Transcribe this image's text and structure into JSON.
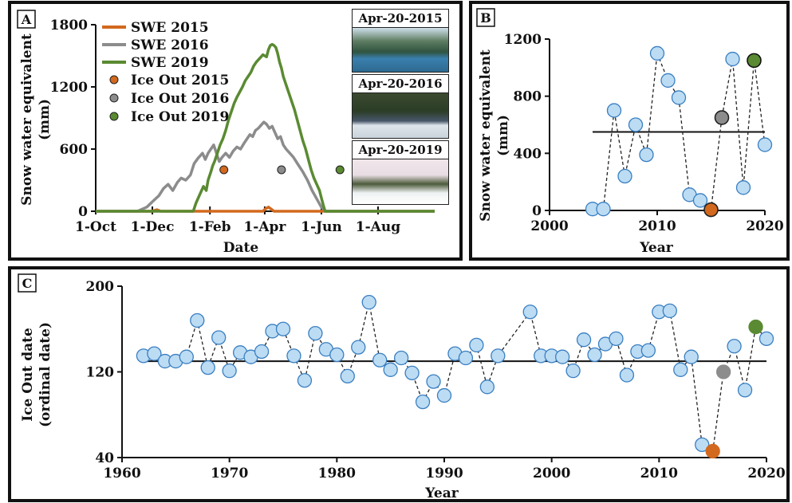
{
  "panels": {
    "a": {
      "letter": "A",
      "chart_data": {
        "type": "line",
        "xlabel": "Date",
        "ylabel": "Snow water equivalent (mm)",
        "ylabel_lines": [
          "Snow water equivalent",
          "(mm)"
        ],
        "x_tick_labels": [
          "1-Oct",
          "1-Dec",
          "1-Feb",
          "1-Apr",
          "1-Jun",
          "1-Aug"
        ],
        "x_tick_days": [
          0,
          61,
          123,
          182,
          243,
          304
        ],
        "x_range_days": [
          0,
          365
        ],
        "ylim": [
          0,
          1800
        ],
        "y_ticks": [
          0,
          600,
          1200,
          1800
        ],
        "series": [
          {
            "name": "SWE 2015",
            "color": "#d2691e",
            "points": [
              [
                0,
                0
              ],
              [
                60,
                0
              ],
              [
                62,
                5
              ],
              [
                66,
                15
              ],
              [
                70,
                0
              ],
              [
                150,
                0
              ],
              [
                180,
                0
              ],
              [
                183,
                25
              ],
              [
                186,
                40
              ],
              [
                189,
                20
              ],
              [
                192,
                0
              ],
              [
                365,
                0
              ]
            ]
          },
          {
            "name": "SWE 2016",
            "color": "#8c8c8c",
            "points": [
              [
                0,
                0
              ],
              [
                45,
                0
              ],
              [
                55,
                40
              ],
              [
                62,
                100
              ],
              [
                68,
                150
              ],
              [
                73,
                220
              ],
              [
                78,
                260
              ],
              [
                83,
                200
              ],
              [
                88,
                280
              ],
              [
                92,
                320
              ],
              [
                97,
                300
              ],
              [
                102,
                350
              ],
              [
                106,
                460
              ],
              [
                110,
                510
              ],
              [
                115,
                560
              ],
              [
                118,
                500
              ],
              [
                121,
                560
              ],
              [
                124,
                600
              ],
              [
                127,
                640
              ],
              [
                130,
                560
              ],
              [
                133,
                480
              ],
              [
                136,
                520
              ],
              [
                140,
                560
              ],
              [
                144,
                520
              ],
              [
                148,
                580
              ],
              [
                152,
                620
              ],
              [
                156,
                600
              ],
              [
                160,
                660
              ],
              [
                163,
                700
              ],
              [
                166,
                740
              ],
              [
                169,
                720
              ],
              [
                172,
                780
              ],
              [
                175,
                800
              ],
              [
                178,
                830
              ],
              [
                181,
                860
              ],
              [
                184,
                840
              ],
              [
                187,
                800
              ],
              [
                190,
                820
              ],
              [
                193,
                760
              ],
              [
                196,
                700
              ],
              [
                199,
                720
              ],
              [
                202,
                640
              ],
              [
                205,
                600
              ],
              [
                209,
                560
              ],
              [
                213,
                520
              ],
              [
                218,
                450
              ],
              [
                223,
                380
              ],
              [
                228,
                300
              ],
              [
                233,
                200
              ],
              [
                238,
                120
              ],
              [
                243,
                40
              ],
              [
                248,
                0
              ],
              [
                365,
                0
              ]
            ]
          },
          {
            "name": "SWE 2019",
            "color": "#5a8a32",
            "points": [
              [
                0,
                0
              ],
              [
                105,
                0
              ],
              [
                108,
                80
              ],
              [
                112,
                160
              ],
              [
                116,
                240
              ],
              [
                119,
                200
              ],
              [
                121,
                300
              ],
              [
                124,
                380
              ],
              [
                126,
                440
              ],
              [
                128,
                480
              ],
              [
                131,
                560
              ],
              [
                134,
                640
              ],
              [
                137,
                700
              ],
              [
                140,
                780
              ],
              [
                143,
                880
              ],
              [
                146,
                960
              ],
              [
                149,
                1040
              ],
              [
                152,
                1100
              ],
              [
                155,
                1150
              ],
              [
                158,
                1200
              ],
              [
                161,
                1260
              ],
              [
                164,
                1300
              ],
              [
                167,
                1340
              ],
              [
                170,
                1400
              ],
              [
                173,
                1440
              ],
              [
                176,
                1470
              ],
              [
                178,
                1490
              ],
              [
                180,
                1510
              ],
              [
                182,
                1500
              ],
              [
                184,
                1490
              ],
              [
                186,
                1560
              ],
              [
                188,
                1600
              ],
              [
                190,
                1610
              ],
              [
                192,
                1600
              ],
              [
                194,
                1580
              ],
              [
                196,
                1520
              ],
              [
                198,
                1440
              ],
              [
                200,
                1380
              ],
              [
                202,
                1300
              ],
              [
                205,
                1220
              ],
              [
                208,
                1140
              ],
              [
                211,
                1060
              ],
              [
                214,
                980
              ],
              [
                217,
                880
              ],
              [
                220,
                780
              ],
              [
                223,
                680
              ],
              [
                226,
                600
              ],
              [
                229,
                500
              ],
              [
                232,
                400
              ],
              [
                235,
                320
              ],
              [
                238,
                260
              ],
              [
                241,
                200
              ],
              [
                243,
                130
              ],
              [
                245,
                60
              ],
              [
                247,
                0
              ],
              [
                365,
                0
              ]
            ]
          }
        ],
        "ice_out": [
          {
            "name": "Ice Out 2015",
            "color": "#d2691e",
            "day": 138,
            "y": 400
          },
          {
            "name": "Ice Out 2016",
            "color": "#8c8c8c",
            "day": 200,
            "y": 400
          },
          {
            "name": "Ice Out 2019",
            "color": "#5a8a32",
            "day": 263,
            "y": 400
          }
        ],
        "grid": false,
        "legend_position": "top-left"
      }
    },
    "photos": [
      {
        "label": "Apr-20-2015",
        "icon": "forest-lake-photo"
      },
      {
        "label": "Apr-20-2016",
        "icon": "snowy-lake-photo"
      },
      {
        "label": "Apr-20-2019",
        "icon": "snow-covered-lake-photo"
      }
    ],
    "b": {
      "letter": "B",
      "chart_data": {
        "type": "scatter",
        "xlabel": "Year",
        "ylabel": "Snow water equivalent (mm)",
        "ylabel_lines": [
          "Snow water equivalent",
          "(mm)"
        ],
        "xlim": [
          2000,
          2020
        ],
        "x_ticks": [
          2000,
          2010,
          2020
        ],
        "ylim": [
          0,
          1200
        ],
        "y_ticks": [
          0,
          400,
          800,
          1200
        ],
        "mean_line": {
          "x": [
            2004,
            2020
          ],
          "y": 550
        },
        "points": [
          {
            "x": 2004,
            "y": 10
          },
          {
            "x": 2005,
            "y": 10
          },
          {
            "x": 2006,
            "y": 700
          },
          {
            "x": 2007,
            "y": 240
          },
          {
            "x": 2008,
            "y": 600
          },
          {
            "x": 2009,
            "y": 390
          },
          {
            "x": 2010,
            "y": 1100
          },
          {
            "x": 2011,
            "y": 910
          },
          {
            "x": 2012,
            "y": 790
          },
          {
            "x": 2013,
            "y": 110
          },
          {
            "x": 2014,
            "y": 70
          },
          {
            "x": 2015,
            "y": 5
          },
          {
            "x": 2016,
            "y": 650
          },
          {
            "x": 2017,
            "y": 1060
          },
          {
            "x": 2018,
            "y": 160
          },
          {
            "x": 2019,
            "y": 1050
          },
          {
            "x": 2020,
            "y": 460
          }
        ],
        "highlight": {
          "2015": "#d2691e",
          "2016": "#8c8c8c",
          "2019": "#5a8a32"
        },
        "point_color": "#bcdcf4",
        "point_stroke": "#3a7fc1",
        "grid": false
      }
    },
    "c": {
      "letter": "C",
      "chart_data": {
        "type": "scatter",
        "xlabel": "Year",
        "ylabel": "Ice Out date (ordinal date)",
        "ylabel_lines": [
          "Ice Out date",
          "(ordinal date)"
        ],
        "xlim": [
          1960,
          2020
        ],
        "x_ticks": [
          1960,
          1970,
          1980,
          1990,
          2000,
          2010,
          2020
        ],
        "ylim": [
          40,
          200
        ],
        "y_ticks": [
          40,
          120,
          200
        ],
        "mean_line": {
          "x": [
            1962,
            2020
          ],
          "y": 130
        },
        "points": [
          {
            "x": 1962,
            "y": 135
          },
          {
            "x": 1963,
            "y": 137
          },
          {
            "x": 1964,
            "y": 130
          },
          {
            "x": 1965,
            "y": 130
          },
          {
            "x": 1966,
            "y": 134
          },
          {
            "x": 1967,
            "y": 168
          },
          {
            "x": 1968,
            "y": 124
          },
          {
            "x": 1969,
            "y": 152
          },
          {
            "x": 1970,
            "y": 121
          },
          {
            "x": 1971,
            "y": 138
          },
          {
            "x": 1972,
            "y": 134
          },
          {
            "x": 1973,
            "y": 139
          },
          {
            "x": 1974,
            "y": 158
          },
          {
            "x": 1975,
            "y": 160
          },
          {
            "x": 1976,
            "y": 135
          },
          {
            "x": 1977,
            "y": 112
          },
          {
            "x": 1978,
            "y": 156
          },
          {
            "x": 1979,
            "y": 141
          },
          {
            "x": 1980,
            "y": 136
          },
          {
            "x": 1981,
            "y": 116
          },
          {
            "x": 1982,
            "y": 143
          },
          {
            "x": 1983,
            "y": 185
          },
          {
            "x": 1984,
            "y": 131
          },
          {
            "x": 1985,
            "y": 122
          },
          {
            "x": 1986,
            "y": 133
          },
          {
            "x": 1987,
            "y": 119
          },
          {
            "x": 1988,
            "y": 92
          },
          {
            "x": 1989,
            "y": 111
          },
          {
            "x": 1990,
            "y": 98
          },
          {
            "x": 1991,
            "y": 137
          },
          {
            "x": 1992,
            "y": 133
          },
          {
            "x": 1993,
            "y": 145
          },
          {
            "x": 1994,
            "y": 106
          },
          {
            "x": 1995,
            "y": 135
          },
          {
            "x": 1998,
            "y": 176
          },
          {
            "x": 1999,
            "y": 135
          },
          {
            "x": 2000,
            "y": 135
          },
          {
            "x": 2001,
            "y": 134
          },
          {
            "x": 2002,
            "y": 121
          },
          {
            "x": 2003,
            "y": 150
          },
          {
            "x": 2004,
            "y": 136
          },
          {
            "x": 2005,
            "y": 146
          },
          {
            "x": 2006,
            "y": 151
          },
          {
            "x": 2007,
            "y": 117
          },
          {
            "x": 2008,
            "y": 139
          },
          {
            "x": 2009,
            "y": 140
          },
          {
            "x": 2010,
            "y": 176
          },
          {
            "x": 2011,
            "y": 177
          },
          {
            "x": 2012,
            "y": 122
          },
          {
            "x": 2013,
            "y": 134
          },
          {
            "x": 2014,
            "y": 52
          },
          {
            "x": 2015,
            "y": 46
          },
          {
            "x": 2016,
            "y": 120
          },
          {
            "x": 2017,
            "y": 144
          },
          {
            "x": 2018,
            "y": 103
          },
          {
            "x": 2019,
            "y": 162
          },
          {
            "x": 2020,
            "y": 151
          }
        ],
        "highlight": {
          "2015": "#d2691e",
          "2016": "#8c8c8c",
          "2019": "#5a8a32"
        },
        "point_color": "#bcdcf4",
        "point_stroke": "#3a7fc1",
        "grid": false
      }
    }
  }
}
